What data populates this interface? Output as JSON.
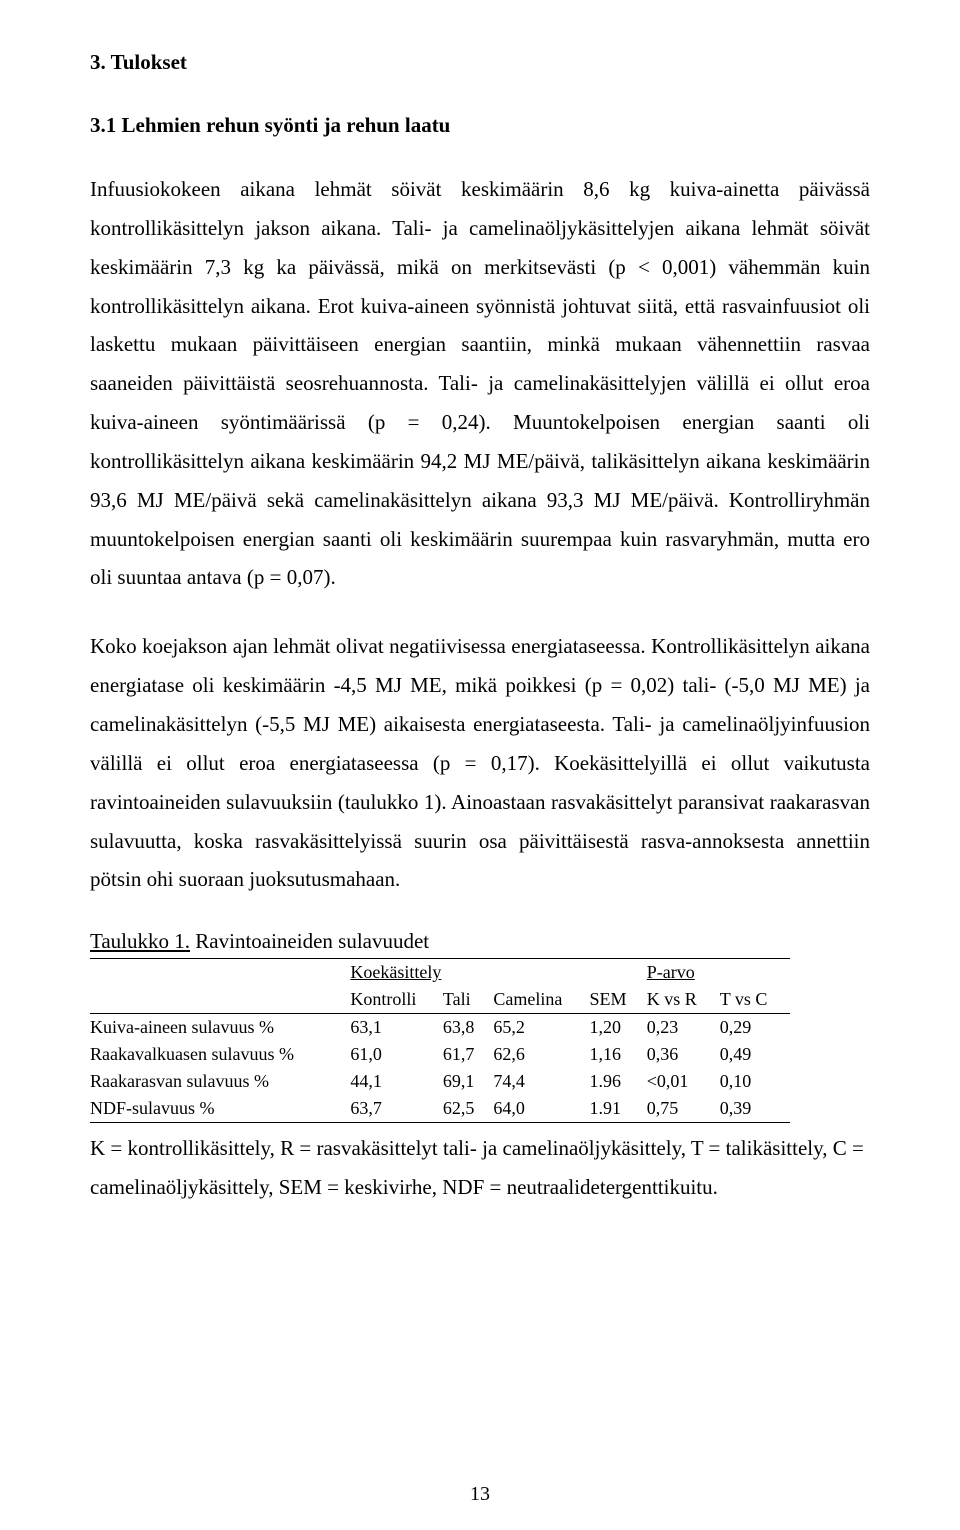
{
  "section_heading": "3. Tulokset",
  "subsection_heading": "3.1 Lehmien rehun syönti ja rehun laatu",
  "para1": "Infuusiokokeen aikana lehmät söivät keskimäärin 8,6 kg kuiva-ainetta päivässä kontrollikäsittelyn jakson aikana. Tali- ja camelinaöljykäsittelyjen aikana lehmät söivät keskimäärin 7,3 kg ka päivässä, mikä on merkitsevästi (p < 0,001) vähemmän kuin kontrollikäsittelyn aikana. Erot kuiva-aineen syönnistä johtuvat siitä, että rasvainfuusiot oli laskettu mukaan päivittäiseen energian saantiin, minkä mukaan vähennettiin rasvaa saaneiden päivittäistä seosrehuannosta. Tali- ja camelinakäsittelyjen välillä ei ollut eroa kuiva-aineen syöntimäärissä (p = 0,24). Muuntokelpoisen energian saanti oli kontrollikäsittelyn aikana keskimäärin 94,2 MJ ME/päivä, talikäsittelyn aikana keskimäärin 93,6 MJ ME/päivä sekä camelinakäsittelyn aikana 93,3 MJ ME/päivä. Kontrolliryhmän muuntokelpoisen energian saanti oli keskimäärin suurempaa kuin rasvaryhmän, mutta ero oli suuntaa antava (p = 0,07).",
  "para2": "Koko koejakson ajan lehmät olivat negatiivisessa energiataseessa. Kontrollikäsittelyn aikana energiatase oli keskimäärin -4,5 MJ ME, mikä poikkesi (p = 0,02) tali- (-5,0 MJ ME) ja camelinakäsittelyn (-5,5 MJ ME) aikaisesta energiataseesta. Tali- ja camelinaöljyinfuusion välillä ei ollut eroa energiataseessa (p = 0,17). Koekäsittelyillä ei ollut vaikutusta ravintoaineiden sulavuuksiin (taulukko 1). Ainoastaan rasvakäsittelyt paransivat raakarasvan sulavuutta, koska rasvakäsittelyissä suurin osa päivittäisestä rasva-annoksesta annettiin pötsin ohi suoraan juoksutusmahaan.",
  "table": {
    "caption": "Taulukko 1. Ravintoaineiden sulavuudet",
    "header_group_1": "Koekäsittely",
    "header_group_2": "P-arvo",
    "columns": [
      "",
      "Kontrolli",
      "Tali",
      "Camelina",
      "SEM",
      "K vs R",
      "T vs C"
    ],
    "rows": [
      [
        "Kuiva-aineen sulavuus %",
        "63,1",
        "63,8",
        "65,2",
        "1,20",
        "0,23",
        "0,29"
      ],
      [
        "Raakavalkuasen sulavuus %",
        "61,0",
        "61,7",
        "62,6",
        "1,16",
        "0,36",
        "0,49"
      ],
      [
        "Raakarasvan sulavuus %",
        "44,1",
        "69,1",
        "74,4",
        "1.96",
        "<0,01",
        "0,10"
      ],
      [
        "NDF-sulavuus %",
        "63,7",
        "62,5",
        "64,0",
        "1.91",
        "0,75",
        "0,39"
      ]
    ],
    "caption_underline": "Taulukko 1."
  },
  "table_notes": "K = kontrollikäsittely, R = rasvakäsittelyt tali- ja camelinaöljykäsittely, T = talikäsittely, C = camelinaöljykäsittely, SEM = keskivirhe, NDF = neutraalidetergenttikuitu.",
  "page_number": "13"
}
